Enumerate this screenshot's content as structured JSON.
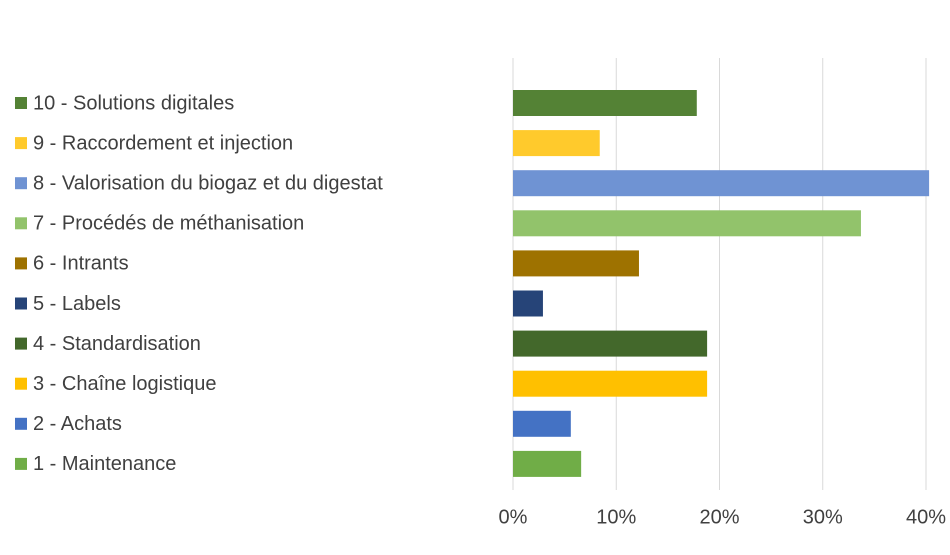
{
  "chart_data": {
    "type": "bar",
    "orientation": "horizontal",
    "categories": [
      "10 - Solutions digitales",
      "9 - Raccordement et injection",
      "8 - Valorisation du biogaz  et du digestat",
      "7 - Procédés de méthanisation",
      "6 - Intrants",
      "5 - Labels",
      "4 - Standardisation",
      "3 - Chaîne logistique",
      "2 - Achats",
      "1 - Maintenance"
    ],
    "values": [
      17.8,
      8.4,
      40.3,
      33.7,
      12.2,
      2.9,
      18.8,
      18.8,
      5.6,
      6.6
    ],
    "colors": [
      "#548235",
      "#ffca2c",
      "#6f93d3",
      "#92c36b",
      "#9e7200",
      "#264478",
      "#43682b",
      "#ffc000",
      "#4472c4",
      "#70ad47"
    ],
    "xlim": [
      0,
      40
    ],
    "xticks": [
      {
        "value": 0,
        "label": "0%"
      },
      {
        "value": 10,
        "label": "10%"
      },
      {
        "value": 20,
        "label": "20%"
      },
      {
        "value": 30,
        "label": "30%"
      },
      {
        "value": 40,
        "label": "40%"
      }
    ],
    "grid": true,
    "legend": "left"
  }
}
